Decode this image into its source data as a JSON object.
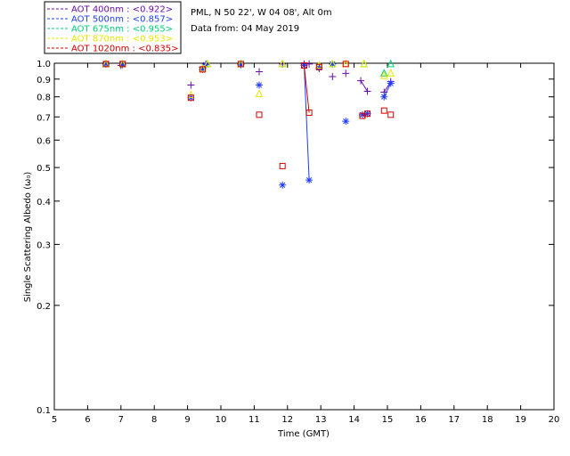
{
  "header": {
    "site": "PML, N 50 22', W 04 08', Alt 0m",
    "date": "Data from: 04 May 2019"
  },
  "legend": {
    "items": [
      {
        "label": "AOT  400nm : <0.922>",
        "color": "#6a0dad"
      },
      {
        "label": "AOT  500nm : <0.857>",
        "color": "#1e3cff"
      },
      {
        "label": "AOT  675nm : <0.955>",
        "color": "#00d07a"
      },
      {
        "label": "AOT  870nm : <0.953>",
        "color": "#e8e800"
      },
      {
        "label": "AOT 1020nm : <0.835>",
        "color": "#d40000"
      }
    ]
  },
  "chart_data": {
    "type": "scatter",
    "title": "",
    "xlabel": "Time (GMT)",
    "ylabel": "Single Scattering Albedo (ω₀)",
    "xlim": [
      5,
      20
    ],
    "ylim": [
      0.1,
      1.0
    ],
    "y_scale": "log",
    "x_ticks": [
      "5",
      "6",
      "7",
      "8",
      "9",
      "10",
      "11",
      "12",
      "13",
      "14",
      "15",
      "16",
      "17",
      "18",
      "19",
      "20"
    ],
    "x_tick_values": [
      5,
      6,
      7,
      8,
      9,
      10,
      11,
      12,
      13,
      14,
      15,
      16,
      17,
      18,
      19,
      20
    ],
    "y_ticks": [
      "1.0",
      "0.9",
      "0.8",
      "0.7",
      "0.6",
      "0.5",
      "0.4",
      "0.3",
      "0.2",
      "0.1"
    ],
    "y_tick_values": [
      1.0,
      0.9,
      0.8,
      0.7,
      0.6,
      0.5,
      0.4,
      0.3,
      0.2,
      0.1
    ],
    "series": [
      {
        "name": "AOT  400nm",
        "color": "#6a0dad",
        "marker": "plus",
        "points": [
          [
            6.55,
            0.995
          ],
          [
            7.0,
            0.985
          ],
          [
            9.1,
            0.865
          ],
          [
            9.45,
            0.975
          ],
          [
            9.55,
            0.995
          ],
          [
            10.6,
            0.995
          ],
          [
            11.15,
            0.945
          ],
          [
            11.85,
            0.995
          ],
          [
            12.5,
            0.995
          ],
          [
            12.65,
            0.995
          ],
          [
            12.95,
            0.965
          ],
          [
            13.35,
            0.915
          ],
          [
            13.75,
            0.935
          ],
          [
            14.2,
            0.89
          ],
          [
            14.4,
            0.83
          ],
          [
            14.9,
            0.825
          ],
          [
            15.1,
            0.885
          ]
        ],
        "lines": [
          [
            [
              14.2,
              0.89
            ],
            [
              14.4,
              0.83
            ]
          ],
          [
            [
              14.9,
              0.825
            ],
            [
              15.1,
              0.885
            ]
          ]
        ]
      },
      {
        "name": "AOT  500nm",
        "color": "#1e3cff",
        "marker": "asterisk",
        "points": [
          [
            6.55,
            0.995
          ],
          [
            7.05,
            0.99
          ],
          [
            9.1,
            0.795
          ],
          [
            9.45,
            0.96
          ],
          [
            9.55,
            0.99
          ],
          [
            10.6,
            0.99
          ],
          [
            11.15,
            0.865
          ],
          [
            11.85,
            0.445
          ],
          [
            12.5,
            0.985
          ],
          [
            12.65,
            0.46
          ],
          [
            12.95,
            0.97
          ],
          [
            13.35,
            0.995
          ],
          [
            13.75,
            0.68
          ],
          [
            14.25,
            0.71
          ],
          [
            14.4,
            0.715
          ],
          [
            14.9,
            0.8
          ],
          [
            15.1,
            0.875
          ]
        ],
        "lines": [
          [
            [
              12.5,
              0.985
            ],
            [
              12.65,
              0.46
            ]
          ],
          [
            [
              14.25,
              0.71
            ],
            [
              14.4,
              0.715
            ]
          ],
          [
            [
              14.9,
              0.8
            ],
            [
              15.1,
              0.875
            ]
          ]
        ]
      },
      {
        "name": "AOT  675nm",
        "color": "#00d07a",
        "marker": "triangle",
        "points": [
          [
            6.55,
            0.995
          ],
          [
            7.05,
            0.995
          ],
          [
            9.45,
            0.965
          ],
          [
            9.6,
            0.995
          ],
          [
            10.6,
            0.995
          ],
          [
            11.85,
            0.995
          ],
          [
            12.95,
            0.985
          ],
          [
            13.35,
            0.995
          ],
          [
            14.3,
            0.995
          ],
          [
            14.9,
            0.935
          ],
          [
            15.1,
            0.995
          ]
        ],
        "lines": []
      },
      {
        "name": "AOT  870nm",
        "color": "#e8e800",
        "marker": "triangle",
        "points": [
          [
            6.55,
            0.995
          ],
          [
            7.05,
            0.995
          ],
          [
            9.1,
            0.81
          ],
          [
            9.45,
            0.965
          ],
          [
            9.6,
            0.995
          ],
          [
            10.6,
            0.995
          ],
          [
            11.15,
            0.815
          ],
          [
            11.85,
            0.995
          ],
          [
            12.95,
            0.985
          ],
          [
            13.35,
            0.995
          ],
          [
            13.75,
            0.995
          ],
          [
            14.3,
            0.995
          ],
          [
            14.9,
            0.92
          ],
          [
            15.1,
            0.935
          ]
        ],
        "lines": []
      },
      {
        "name": "AOT 1020nm",
        "color": "#d40000",
        "marker": "square",
        "points": [
          [
            6.55,
            0.995
          ],
          [
            7.05,
            0.995
          ],
          [
            9.1,
            0.795
          ],
          [
            9.45,
            0.96
          ],
          [
            10.6,
            0.995
          ],
          [
            11.15,
            0.71
          ],
          [
            11.85,
            0.505
          ],
          [
            12.5,
            0.985
          ],
          [
            12.65,
            0.72
          ],
          [
            12.95,
            0.975
          ],
          [
            13.75,
            0.995
          ],
          [
            14.25,
            0.705
          ],
          [
            14.4,
            0.715
          ],
          [
            14.9,
            0.73
          ],
          [
            15.1,
            0.71
          ]
        ],
        "lines": [
          [
            [
              12.5,
              0.985
            ],
            [
              12.65,
              0.72
            ]
          ],
          [
            [
              14.25,
              0.705
            ],
            [
              14.4,
              0.715
            ]
          ]
        ]
      }
    ]
  }
}
